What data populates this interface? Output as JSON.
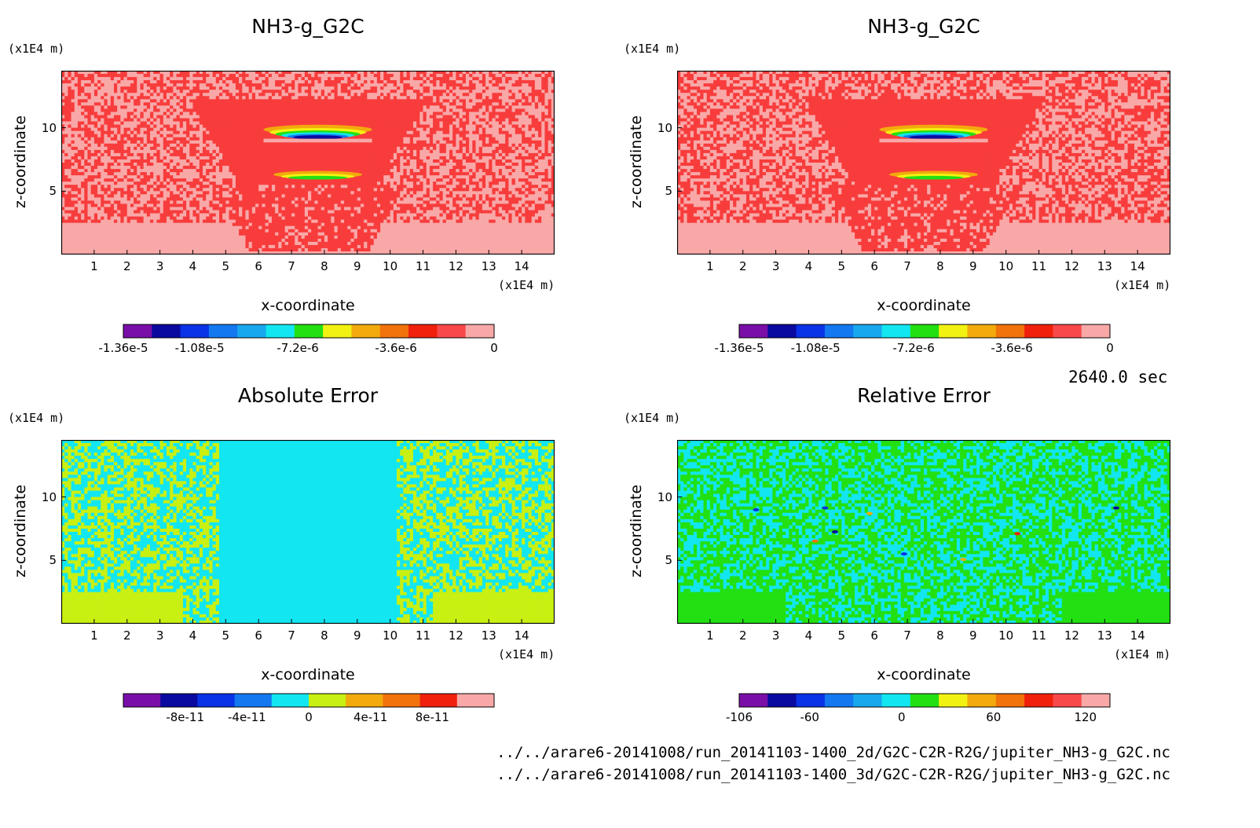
{
  "chart_data": [
    {
      "type": "heatmap",
      "title": "NH3-g_G2C",
      "xlabel": "x-coordinate",
      "ylabel": "z-coordinate",
      "x_unit": "(x1E4 m)",
      "z_unit": "(x1E4 m)",
      "xlim": [
        0,
        15
      ],
      "zlim": [
        0,
        14.5
      ],
      "x_ticks": [
        "1",
        "2",
        "3",
        "4",
        "5",
        "6",
        "7",
        "8",
        "9",
        "10",
        "11",
        "12",
        "13",
        "14"
      ],
      "z_ticks": [
        "5",
        "10"
      ],
      "colorbar": {
        "min": -1.36e-05,
        "max": 0,
        "tick_labels": [
          "-1.36e-5",
          "-1.08e-5",
          "-7.2e-6",
          "-3.6e-6",
          "0"
        ],
        "colors": [
          "#7a0fa8",
          "#0a0aa0",
          "#0a32e6",
          "#1478f0",
          "#18a8ee",
          "#12e6f0",
          "#22e012",
          "#f2f212",
          "#f2aa0c",
          "#f2720c",
          "#f0200c",
          "#f8484a",
          "#f9a8a8"
        ]
      }
    },
    {
      "type": "heatmap",
      "title": "NH3-g_G2C",
      "xlabel": "x-coordinate",
      "ylabel": "z-coordinate",
      "x_unit": "(x1E4 m)",
      "z_unit": "(x1E4 m)",
      "xlim": [
        0,
        15
      ],
      "zlim": [
        0,
        14.5
      ],
      "x_ticks": [
        "1",
        "2",
        "3",
        "4",
        "5",
        "6",
        "7",
        "8",
        "9",
        "10",
        "11",
        "12",
        "13",
        "14"
      ],
      "z_ticks": [
        "5",
        "10"
      ],
      "colorbar": {
        "min": -1.36e-05,
        "max": 0,
        "tick_labels": [
          "-1.36e-5",
          "-1.08e-5",
          "-7.2e-6",
          "-3.6e-6",
          "0"
        ],
        "colors": [
          "#7a0fa8",
          "#0a0aa0",
          "#0a32e6",
          "#1478f0",
          "#18a8ee",
          "#12e6f0",
          "#22e012",
          "#f2f212",
          "#f2aa0c",
          "#f2720c",
          "#f0200c",
          "#f8484a",
          "#f9a8a8"
        ]
      }
    },
    {
      "type": "heatmap",
      "title": "Absolute Error",
      "xlabel": "x-coordinate",
      "ylabel": "z-coordinate",
      "x_unit": "(x1E4 m)",
      "z_unit": "(x1E4 m)",
      "xlim": [
        0,
        15
      ],
      "zlim": [
        0,
        14.5
      ],
      "x_ticks": [
        "1",
        "2",
        "3",
        "4",
        "5",
        "6",
        "7",
        "8",
        "9",
        "10",
        "11",
        "12",
        "13",
        "14"
      ],
      "z_ticks": [
        "5",
        "10"
      ],
      "colorbar": {
        "min": -1.2e-10,
        "max": 1.2e-10,
        "tick_labels": [
          "-8e-11",
          "-4e-11",
          "0",
          "4e-11",
          "8e-11"
        ],
        "colors": [
          "#7a0fa8",
          "#0a0aa0",
          "#0a32e6",
          "#1478f0",
          "#12e6f0",
          "#c8f012",
          "#f2aa0c",
          "#f2720c",
          "#f0200c",
          "#f9a8a8"
        ]
      }
    },
    {
      "type": "heatmap",
      "title": "Relative Error",
      "xlabel": "x-coordinate",
      "ylabel": "z-coordinate",
      "x_unit": "(x1E4 m)",
      "z_unit": "(x1E4 m)",
      "xlim": [
        0,
        15
      ],
      "zlim": [
        0,
        14.5
      ],
      "x_ticks": [
        "1",
        "2",
        "3",
        "4",
        "5",
        "6",
        "7",
        "8",
        "9",
        "10",
        "11",
        "12",
        "13",
        "14"
      ],
      "z_ticks": [
        "5",
        "10"
      ],
      "colorbar": {
        "min": -106,
        "max": 136,
        "tick_labels": [
          "-106",
          "-60",
          "0",
          "60",
          "120"
        ],
        "colors": [
          "#7a0fa8",
          "#0a0aa0",
          "#0a32e6",
          "#1478f0",
          "#18a8ee",
          "#12e6f0",
          "#22e012",
          "#f2f212",
          "#f2aa0c",
          "#f2720c",
          "#f0200c",
          "#f8484a",
          "#f9a8a8"
        ]
      }
    }
  ],
  "time_label": "2640.0 sec",
  "file_paths": [
    "../../arare6-20141008/run_20141103-1400_2d/G2C-C2R-R2G/jupiter_NH3-g_G2C.nc",
    "../../arare6-20141008/run_20141103-1400_3d/G2C-C2R-R2G/jupiter_NH3-g_G2C.nc"
  ]
}
